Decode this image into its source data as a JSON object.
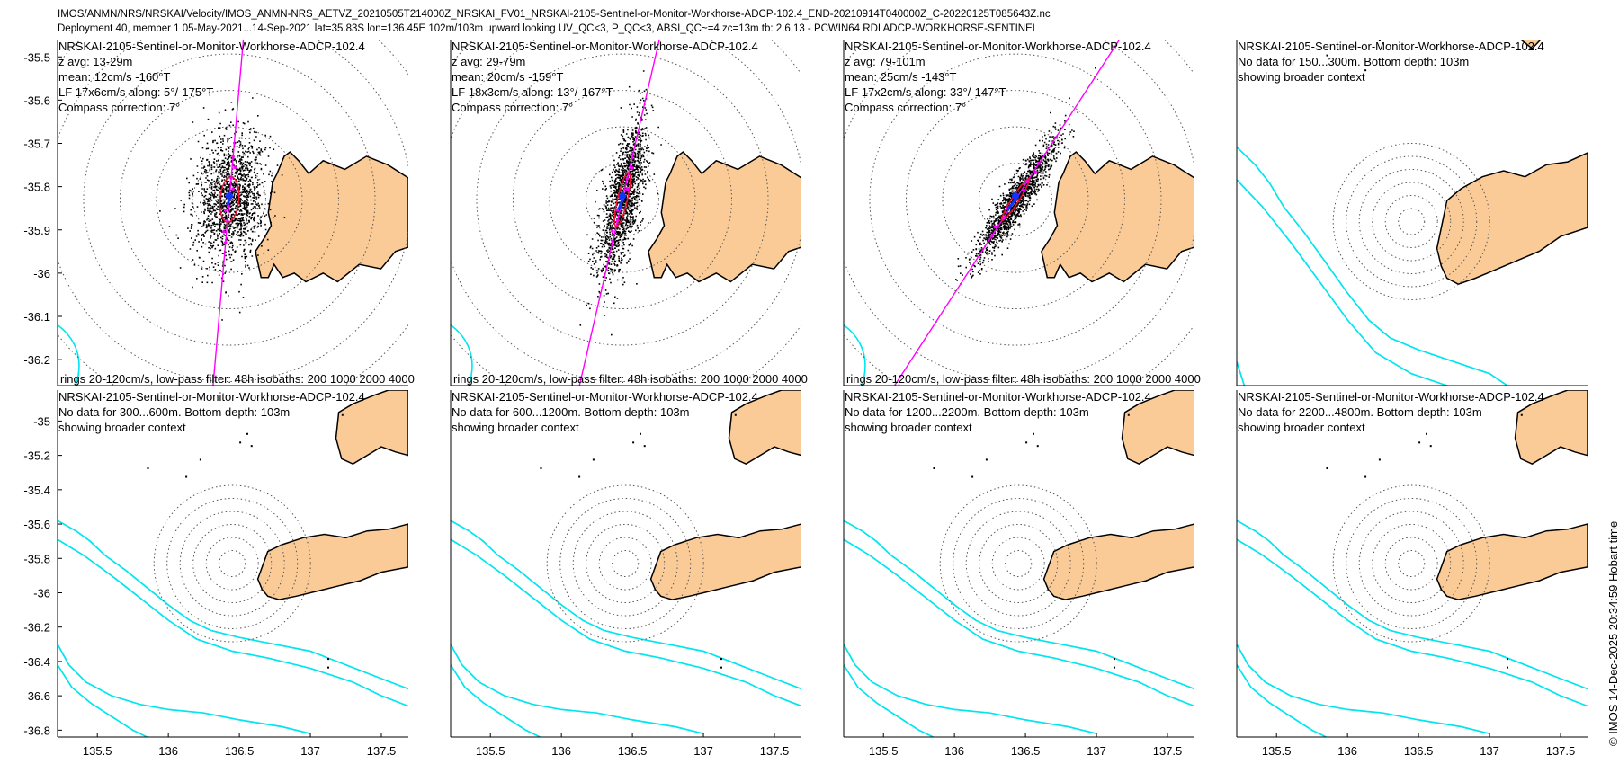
{
  "header": {
    "line1": "IMOS/ANMN/NRS/NRSKAI/Velocity/IMOS_ANMN-NRS_AETVZ_20210505T214000Z_NRSKAI_FV01_NRSKAI-2105-Sentinel-or-Monitor-Workhorse-ADCP-102.4_END-20210914T040000Z_C-20220125T085643Z.nc",
    "line2": "Deployment 40, member 1 05-May-2021...14-Sep-2021 lat=35.83S lon=136.45E 102m/103m upward looking UV_QC<3, P_QC<3, ABSI_QC~=4 zc=13m tb: 2.6.13 - PCWIN64 RDI ADCP-WORKHORSE-SENTINEL"
  },
  "copyright": "© IMOS 14-Dec-2025 20:34:59 Hobart time",
  "colors": {
    "land": "#fbcb97",
    "isobath": "#00e5ee",
    "axis_line": "#ff00ff",
    "ellipse": "#ee1133",
    "mean": "#1133ff",
    "scatter": "#000000",
    "rings": "#555555"
  },
  "chart_data": [
    {
      "type": "scatter",
      "panel": 1,
      "title": "NRSKAI-2105-Sentinel-or-Monitor-Workhorse-ADCP-102.4",
      "lines": [
        "z avg: 13-29m",
        "mean: 12cm/s -160°T",
        "LF 17x6cm/s along: 5°/-175°T",
        "Compass correction: 7°"
      ],
      "footer": "rings 20-120cm/s, low-pass filter: 48h isobaths: 200 1000 2000 4000",
      "ylim": [
        -36.26,
        -35.46
      ],
      "xlim": [
        135.26,
        137.69
      ],
      "yticks": [
        -35.5,
        -35.6,
        -35.7,
        -35.8,
        -35.9,
        -36,
        -36.1,
        -36.2
      ],
      "ytick_labels": [
        "-35.5",
        "-35.6",
        "-35.7",
        "-35.8",
        "-35.9",
        "-36",
        "-36.1",
        "-36.2"
      ],
      "mean_speed_cms": 12,
      "mean_dir_degT": -160,
      "lf_major_cms": 17,
      "lf_minor_cms": 6,
      "along_deg": 5
    },
    {
      "type": "scatter",
      "panel": 2,
      "title": "NRSKAI-2105-Sentinel-or-Monitor-Workhorse-ADCP-102.4",
      "lines": [
        "z avg: 29-79m",
        "mean: 20cm/s -159°T",
        "LF 18x3cm/s along: 13°/-167°T",
        "Compass correction: 7°"
      ],
      "footer": "rings 20-120cm/s, low-pass filter: 48h isobaths: 200 1000 2000 4000",
      "ylim": [
        -36.26,
        -35.46
      ],
      "xlim": [
        135.26,
        137.69
      ],
      "mean_speed_cms": 20,
      "mean_dir_degT": -159,
      "lf_major_cms": 18,
      "lf_minor_cms": 3,
      "along_deg": 13
    },
    {
      "type": "scatter",
      "panel": 3,
      "title": "NRSKAI-2105-Sentinel-or-Monitor-Workhorse-ADCP-102.4",
      "lines": [
        "z avg: 79-101m",
        "mean: 25cm/s -143°T",
        "LF 17x2cm/s along: 33°/-147°T",
        "Compass correction: 7°"
      ],
      "footer": "rings 20-120cm/s, low-pass filter: 48h isobaths: 200 1000 2000 4000",
      "ylim": [
        -36.26,
        -35.46
      ],
      "xlim": [
        135.26,
        137.69
      ],
      "mean_speed_cms": 25,
      "mean_dir_degT": -143,
      "lf_major_cms": 17,
      "lf_minor_cms": 2,
      "along_deg": 33
    },
    {
      "type": "scatter",
      "panel": 4,
      "title": "NRSKAI-2105-Sentinel-or-Monitor-Workhorse-ADCP-102.4",
      "lines": [
        "No data for 150...300m. Bottom depth: 103m",
        "showing broader context"
      ]
    },
    {
      "type": "scatter",
      "panel": 5,
      "title": "NRSKAI-2105-Sentinel-or-Monitor-Workhorse-ADCP-102.4",
      "lines": [
        "No data for 300...600m. Bottom depth: 103m",
        "showing broader context"
      ],
      "ylim": [
        -36.84,
        -34.82
      ],
      "xlim": [
        135.22,
        137.69
      ],
      "yticks": [
        -35,
        -35.2,
        -35.4,
        -35.6,
        -35.8,
        -36,
        -36.2,
        -36.4,
        -36.6,
        -36.8
      ],
      "ytick_labels": [
        "-35",
        "-35.2",
        "-35.4",
        "-35.6",
        "-35.8",
        "-36",
        "-36.2",
        "-36.4",
        "-36.6",
        "-36.8"
      ],
      "xticks": [
        135.5,
        136,
        136.5,
        137,
        137.5
      ],
      "xtick_labels": [
        "135.5",
        "136",
        "136.5",
        "137",
        "137.5"
      ]
    },
    {
      "type": "scatter",
      "panel": 6,
      "title": "NRSKAI-2105-Sentinel-or-Monitor-Workhorse-ADCP-102.4",
      "lines": [
        "No data for 600...1200m. Bottom depth: 103m",
        "showing broader context"
      ],
      "xtick_labels": [
        "135.5",
        "136",
        "136.5",
        "137",
        "137.5"
      ]
    },
    {
      "type": "scatter",
      "panel": 7,
      "title": "NRSKAI-2105-Sentinel-or-Monitor-Workhorse-ADCP-102.4",
      "lines": [
        "No data for 1200...2200m. Bottom depth: 103m",
        "showing broader context"
      ],
      "xtick_labels": [
        "135.5",
        "136",
        "136.5",
        "137",
        "137.5"
      ]
    },
    {
      "type": "scatter",
      "panel": 8,
      "title": "NRSKAI-2105-Sentinel-or-Monitor-Workhorse-ADCP-102.4",
      "lines": [
        "No data for 2200...4800m. Bottom depth: 103m",
        "showing broader context"
      ],
      "xtick_labels": [
        "135.5",
        "136",
        "136.5",
        "137",
        "137.5"
      ]
    }
  ]
}
